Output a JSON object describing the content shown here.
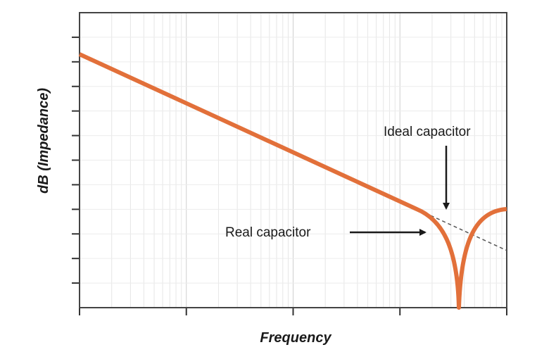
{
  "chart_data": {
    "type": "line",
    "title": "",
    "xlabel": "Frequency",
    "ylabel": "dB (Impedance)",
    "xscale": "log",
    "x_tick_labels": [],
    "y_tick_labels": [],
    "grid": true,
    "legend": "none",
    "series": [
      {
        "name": "Real capacitor",
        "style": "solid",
        "color": "#e2703a"
      },
      {
        "name": "Ideal capacitor",
        "style": "dashed",
        "color": "#555555"
      }
    ],
    "annotations": [
      {
        "text": "Ideal capacitor",
        "points_to": "Ideal capacitor"
      },
      {
        "text": "Real capacitor",
        "points_to": "Real capacitor"
      }
    ]
  }
}
